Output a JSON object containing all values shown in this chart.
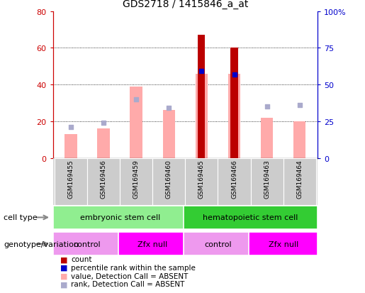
{
  "title": "GDS2718 / 1415846_a_at",
  "samples": [
    "GSM169455",
    "GSM169456",
    "GSM169459",
    "GSM169460",
    "GSM169465",
    "GSM169466",
    "GSM169463",
    "GSM169464"
  ],
  "red_bars": [
    0,
    0,
    0,
    0,
    67,
    60,
    0,
    0
  ],
  "pink_bars": [
    13,
    16,
    39,
    26,
    46,
    46,
    22,
    20
  ],
  "blue_squares_right": [
    21,
    24,
    40,
    34,
    59,
    57,
    35,
    36
  ],
  "light_blue_squares_right": [
    21,
    24,
    40,
    34,
    0,
    0,
    35,
    36
  ],
  "is_present": [
    false,
    false,
    false,
    false,
    true,
    true,
    false,
    false
  ],
  "ylim_left": [
    0,
    80
  ],
  "ylim_right": [
    0,
    100
  ],
  "yticks_left": [
    0,
    20,
    40,
    60,
    80
  ],
  "yticks_right": [
    0,
    25,
    50,
    75,
    100
  ],
  "ytick_labels_right": [
    "0",
    "25",
    "50",
    "75",
    "100%"
  ],
  "cell_type_groups": [
    {
      "label": "embryonic stem cell",
      "start": 0,
      "end": 4,
      "color": "#90EE90"
    },
    {
      "label": "hematopoietic stem cell",
      "start": 4,
      "end": 8,
      "color": "#33CC33"
    }
  ],
  "genotype_groups": [
    {
      "label": "control",
      "start": 0,
      "end": 2,
      "color": "#EE99EE"
    },
    {
      "label": "Zfx null",
      "start": 2,
      "end": 4,
      "color": "#FF00FF"
    },
    {
      "label": "control",
      "start": 4,
      "end": 6,
      "color": "#EE99EE"
    },
    {
      "label": "Zfx null",
      "start": 6,
      "end": 8,
      "color": "#FF00FF"
    }
  ],
  "red_color": "#BB0000",
  "pink_color": "#FFAAAA",
  "blue_color": "#0000CC",
  "light_blue_color": "#AAAACC",
  "left_axis_color": "#CC0000",
  "right_axis_color": "#0000CC",
  "label_row1": "cell type",
  "label_row2": "genotype/variation",
  "legend_labels": [
    "count",
    "percentile rank within the sample",
    "value, Detection Call = ABSENT",
    "rank, Detection Call = ABSENT"
  ],
  "legend_colors": [
    "#BB0000",
    "#0000CC",
    "#FFAAAA",
    "#AAAACC"
  ]
}
